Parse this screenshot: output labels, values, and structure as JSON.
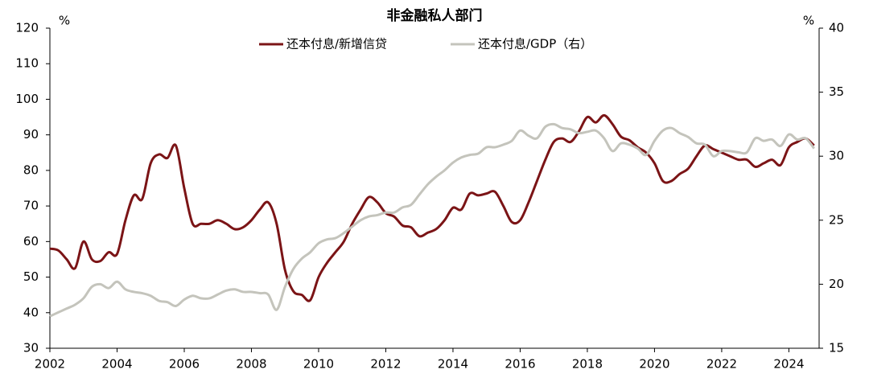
{
  "chart_data": {
    "type": "line",
    "title": "非金融私人部门",
    "ylabel": "%",
    "y2label": "%",
    "x": [
      2002,
      2002.25,
      2002.5,
      2002.75,
      2003,
      2003.25,
      2003.5,
      2003.75,
      2004,
      2004.25,
      2004.5,
      2004.75,
      2005,
      2005.25,
      2005.5,
      2005.75,
      2006,
      2006.25,
      2006.5,
      2006.75,
      2007,
      2007.25,
      2007.5,
      2007.75,
      2008,
      2008.25,
      2008.5,
      2008.75,
      2009,
      2009.25,
      2009.5,
      2009.75,
      2010,
      2010.25,
      2010.5,
      2010.75,
      2011,
      2011.25,
      2011.5,
      2011.75,
      2012,
      2012.25,
      2012.5,
      2012.75,
      2013,
      2013.25,
      2013.5,
      2013.75,
      2014,
      2014.25,
      2014.5,
      2014.75,
      2015,
      2015.25,
      2015.5,
      2015.75,
      2016,
      2016.25,
      2016.5,
      2016.75,
      2017,
      2017.25,
      2017.5,
      2017.75,
      2018,
      2018.25,
      2018.5,
      2018.75,
      2019,
      2019.25,
      2019.5,
      2019.75,
      2020,
      2020.25,
      2020.5,
      2020.75,
      2021,
      2021.25,
      2021.5,
      2021.75,
      2022,
      2022.25,
      2022.5,
      2022.75,
      2023,
      2023.25,
      2023.5,
      2023.75,
      2024,
      2024.25,
      2024.5,
      2024.75
    ],
    "series": [
      {
        "name": "还本付息/新增信贷",
        "color": "#7b1416",
        "values": [
          58,
          57.5,
          55,
          52.5,
          60,
          55,
          54.5,
          57,
          56.5,
          66,
          73,
          72,
          82,
          84.5,
          83.5,
          87,
          75,
          65,
          65,
          65,
          66,
          65,
          63.5,
          64,
          66,
          69,
          71,
          65,
          52,
          46,
          45,
          43.5,
          50,
          54,
          57,
          60,
          65,
          69,
          72.5,
          71,
          68,
          67,
          64.5,
          64,
          61.5,
          62.5,
          63.5,
          66,
          69.5,
          69,
          73.5,
          73,
          73.5,
          74,
          70,
          65.5,
          66,
          71,
          77,
          83,
          88,
          89,
          88,
          91,
          95,
          93.5,
          95.5,
          93,
          89.5,
          88.5,
          86.5,
          85,
          82,
          77,
          77,
          79,
          80.5,
          84,
          87,
          86,
          85,
          84,
          83,
          83,
          81,
          82,
          83,
          81.5,
          86.5,
          88,
          89,
          87
        ]
      },
      {
        "name": "还本付息/GDP（右）",
        "color": "#c4c4bc",
        "axis": "y2",
        "values": [
          17.5,
          17.8,
          18.1,
          18.4,
          18.9,
          19.8,
          20.0,
          19.7,
          20.2,
          19.6,
          19.4,
          19.3,
          19.1,
          18.7,
          18.6,
          18.3,
          18.8,
          19.1,
          18.9,
          18.9,
          19.2,
          19.5,
          19.6,
          19.4,
          19.4,
          19.3,
          19.2,
          18.0,
          19.8,
          21.2,
          22.0,
          22.5,
          23.2,
          23.5,
          23.6,
          24.0,
          24.5,
          25.0,
          25.3,
          25.4,
          25.6,
          25.6,
          26.0,
          26.2,
          27.0,
          27.8,
          28.4,
          28.9,
          29.5,
          29.9,
          30.1,
          30.2,
          30.7,
          30.7,
          30.9,
          31.2,
          32.0,
          31.6,
          31.4,
          32.3,
          32.5,
          32.2,
          32.1,
          31.8,
          31.9,
          32.0,
          31.4,
          30.4,
          31.0,
          30.9,
          30.6,
          30.1,
          31.2,
          32.0,
          32.2,
          31.8,
          31.5,
          31.0,
          30.9,
          30.0,
          30.4,
          30.4,
          30.3,
          30.3,
          31.4,
          31.2,
          31.3,
          30.8,
          31.7,
          31.3,
          31.4,
          30.6
        ]
      }
    ],
    "xlim": [
      2002,
      2024.9
    ],
    "xticks": [
      2002,
      2004,
      2006,
      2008,
      2010,
      2012,
      2014,
      2016,
      2018,
      2020,
      2022,
      2024
    ],
    "ylim": [
      30,
      120
    ],
    "yticks": [
      30,
      40,
      50,
      60,
      70,
      80,
      90,
      100,
      110,
      120
    ],
    "y2lim": [
      15,
      40
    ],
    "y2ticks": [
      15,
      20,
      25,
      30,
      35,
      40
    ]
  }
}
